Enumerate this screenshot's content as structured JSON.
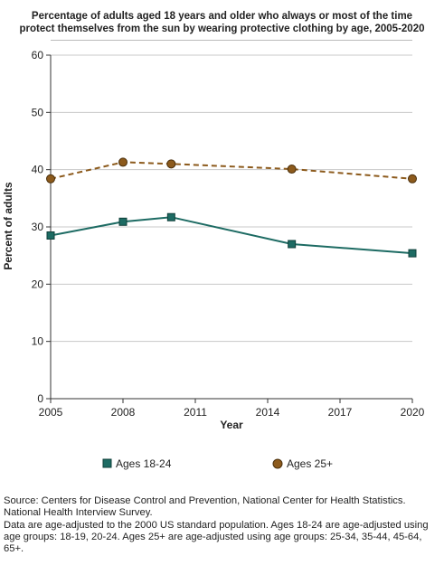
{
  "chart_data": {
    "type": "line",
    "title_lines": [
      "Percentage of adults aged 18 years and older who always or most of the time",
      "protect themselves from the sun by wearing protective clothing by age, 2005-2020"
    ],
    "xlabel": "Year",
    "ylabel": "Percent of adults",
    "xlim": [
      2005,
      2020
    ],
    "ylim": [
      0,
      60
    ],
    "x_ticks": [
      "2005",
      "2008",
      "2011",
      "2014",
      "2017",
      "2020"
    ],
    "y_ticks": [
      "0",
      "10",
      "20",
      "30",
      "40",
      "50",
      "60"
    ],
    "grid": true,
    "legend_position": "bottom",
    "series": [
      {
        "name": "Ages 18-24",
        "color": "#1d6b63",
        "line_style": "solid",
        "marker": "square",
        "x": [
          2005,
          2008,
          2010,
          2015,
          2020
        ],
        "values": [
          28.5,
          30.9,
          31.7,
          27.0,
          25.4
        ]
      },
      {
        "name": "Ages 25+",
        "color": "#8c5a1c",
        "line_style": "dashed",
        "marker": "circle",
        "x": [
          2005,
          2008,
          2010,
          2015,
          2020
        ],
        "values": [
          38.4,
          41.3,
          41.0,
          40.1,
          38.4
        ]
      }
    ]
  },
  "footnote": {
    "source": "Source: Centers for Disease Control and Prevention, National Center for Health Statistics. National Health Interview Survey.",
    "notes": "Data are age-adjusted to the 2000 US standard population. Ages 18-24 are age-adjusted using age groups: 18-19, 20-24. Ages 25+ are age-adjusted using age groups: 25-34, 35-44, 45-64, 65+."
  }
}
